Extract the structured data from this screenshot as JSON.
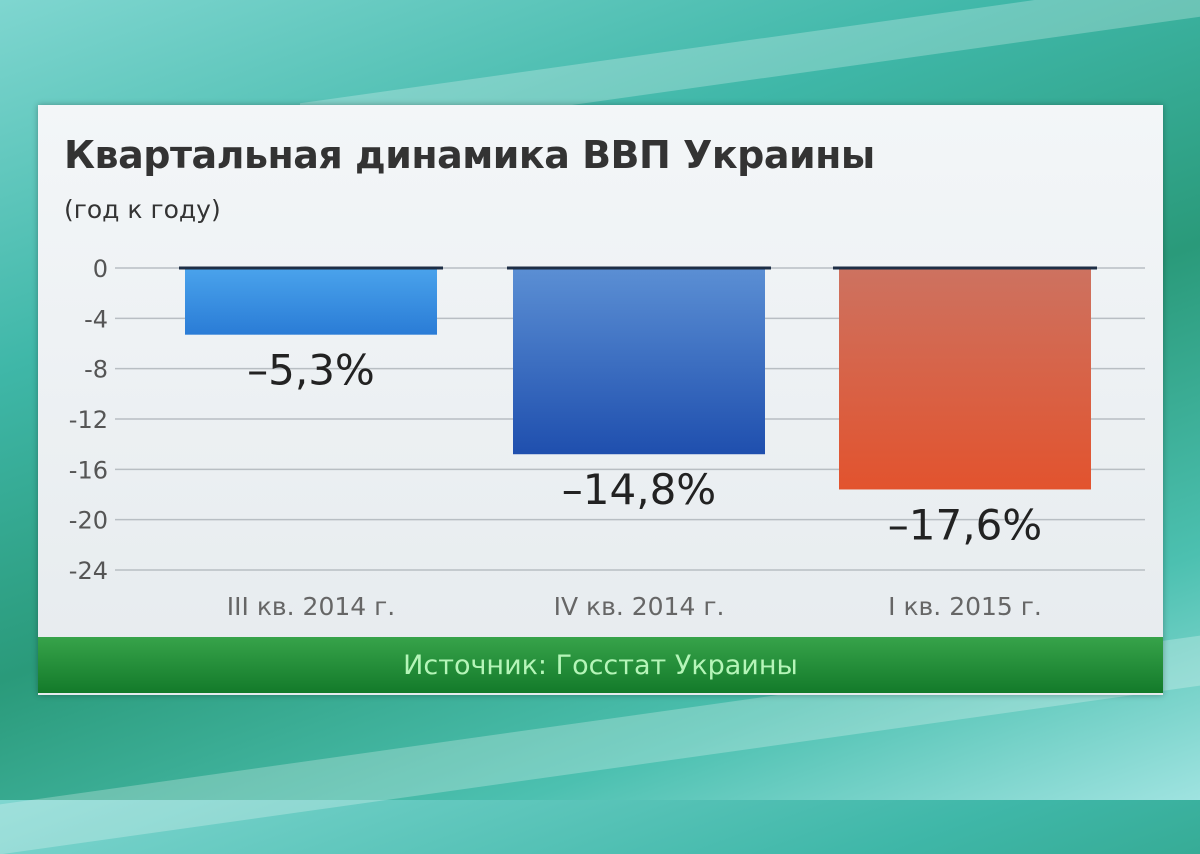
{
  "chart_data": {
    "type": "bar",
    "title": "Квартальная динамика ВВП Украины",
    "subtitle": "(год к году)",
    "categories": [
      "III кв. 2014 г.",
      "IV кв. 2014 г.",
      "I кв. 2015 г."
    ],
    "values": [
      -5.3,
      -14.8,
      -17.6
    ],
    "data_labels": [
      "–5,3%",
      "–14,8%",
      "–17,6%"
    ],
    "bar_colors": [
      [
        "#4aa3ec",
        "#2a7cd6"
      ],
      [
        "#5b8fd4",
        "#1f4fae"
      ],
      [
        "#cd7260",
        "#e2532e"
      ]
    ],
    "yticks": [
      "0",
      "-4",
      "-8",
      "-12",
      "-16",
      "-20",
      "-24"
    ],
    "ytick_values": [
      0,
      -4,
      -8,
      -12,
      -16,
      -20,
      -24
    ],
    "ylim": [
      -24,
      0
    ],
    "grid": true,
    "legend": "none"
  },
  "footer": {
    "source": "Источник: Госстат Украины"
  }
}
